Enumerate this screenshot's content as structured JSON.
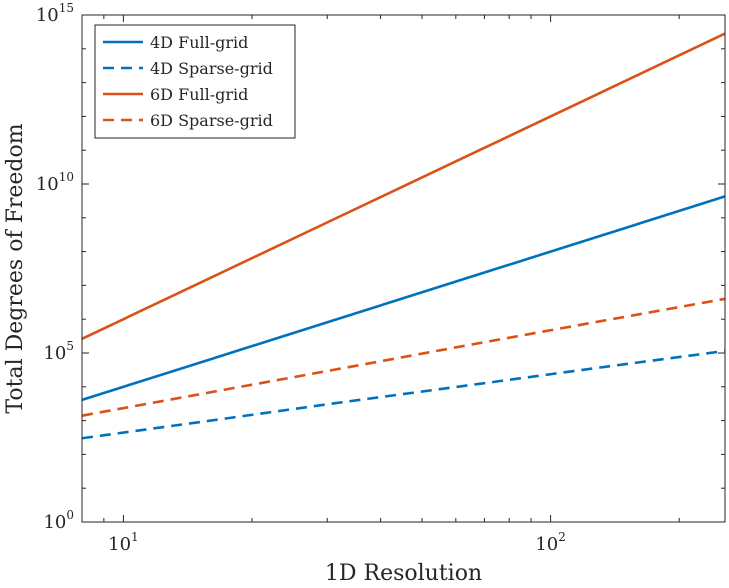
{
  "chart_data": {
    "type": "line",
    "title": "",
    "xlabel": "1D Resolution",
    "ylabel": "Total Degrees of Freedom",
    "xscale": "log",
    "yscale": "log",
    "xlim": [
      8,
      256
    ],
    "ylim": [
      1,
      1000000000000000.0
    ],
    "xticks": [
      {
        "value": 10,
        "base": "10",
        "exp": "1"
      },
      {
        "value": 100,
        "base": "10",
        "exp": "2"
      }
    ],
    "yticks": [
      {
        "value": 1,
        "base": "10",
        "exp": "0"
      },
      {
        "value": 100000,
        "base": "10",
        "exp": "5"
      },
      {
        "value": 10000000000,
        "base": "10",
        "exp": "10"
      },
      {
        "value": 1000000000000000,
        "base": "10",
        "exp": "15"
      }
    ],
    "grid": false,
    "legend_position": "top-left",
    "x": [
      8,
      16,
      32,
      64,
      128,
      256
    ],
    "series": [
      {
        "name": "4D Full-grid",
        "color": "#0072BD",
        "dash": "solid",
        "values": [
          4096,
          65536,
          1048576,
          16777216,
          268435456,
          4294967296
        ]
      },
      {
        "name": "4D Sparse-grid",
        "color": "#0072BD",
        "dash": "dashed",
        "values": [
          300,
          1000,
          3400,
          11000,
          36000,
          115000
        ]
      },
      {
        "name": "6D Full-grid",
        "color": "#D95319",
        "dash": "solid",
        "values": [
          262144,
          16777216,
          1073741824,
          68719476736,
          4398046511104,
          281474976710656
        ]
      },
      {
        "name": "6D Sparse-grid",
        "color": "#D95319",
        "dash": "dashed",
        "values": [
          1400,
          6900,
          34000,
          170000,
          830000,
          4000000
        ]
      }
    ]
  }
}
